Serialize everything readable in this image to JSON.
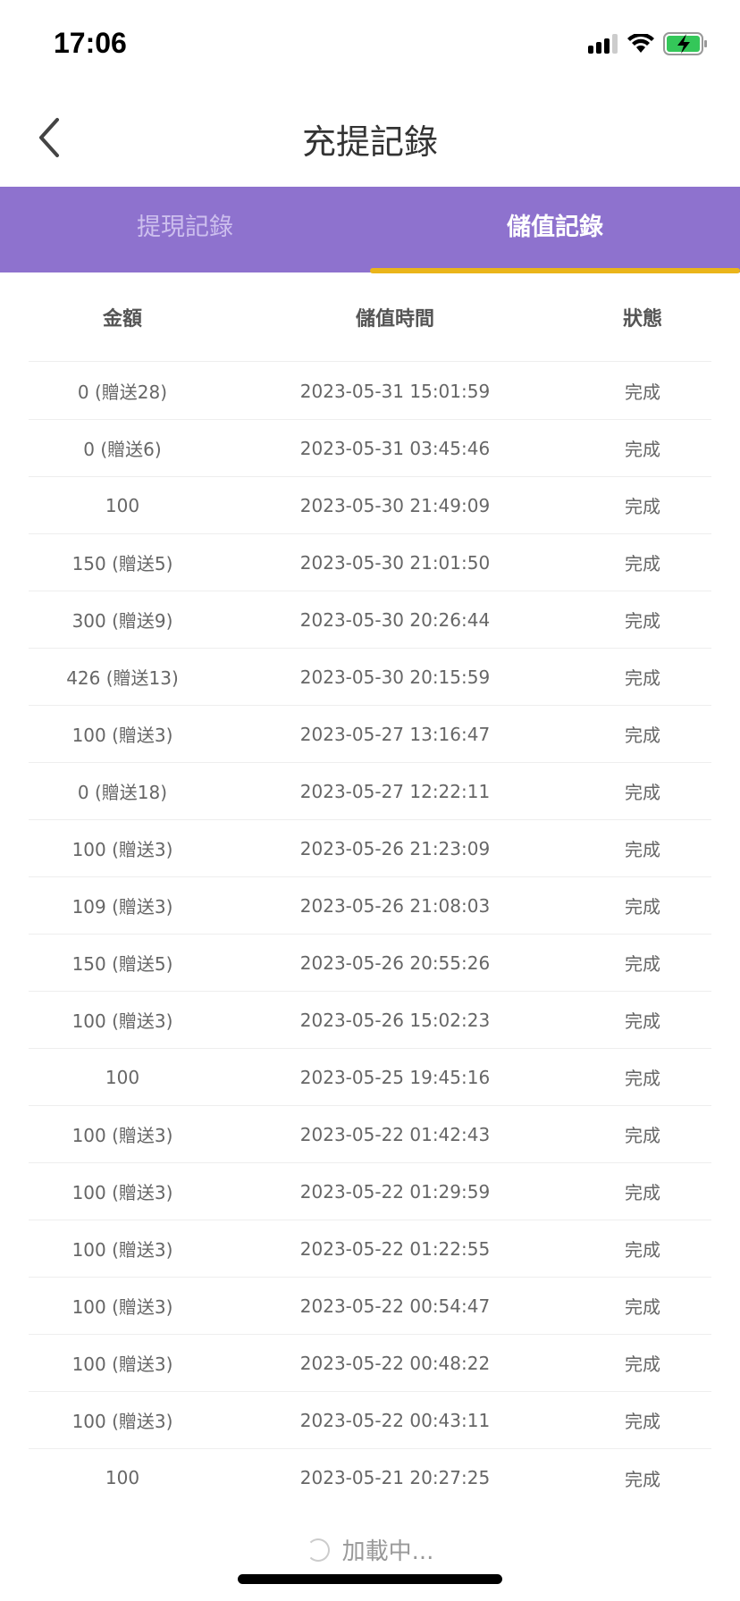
{
  "status_bar": {
    "time": "17:06",
    "icons": [
      "signal-icon",
      "wifi-icon",
      "battery-charging-icon"
    ]
  },
  "nav": {
    "title": "充提記錄",
    "back_icon": "chevron-left-icon"
  },
  "tabs": [
    {
      "label": "提現記錄",
      "active": false
    },
    {
      "label": "儲值記錄",
      "active": true
    }
  ],
  "colors": {
    "tab_bar": "#8E72CE",
    "tab_indicator": "#EAB51A"
  },
  "table": {
    "headers": [
      "金額",
      "儲值時間",
      "狀態"
    ],
    "rows": [
      [
        "0 (贈送28)",
        "2023-05-31 15:01:59",
        "完成"
      ],
      [
        "0 (贈送6)",
        "2023-05-31 03:45:46",
        "完成"
      ],
      [
        "100",
        "2023-05-30 21:49:09",
        "完成"
      ],
      [
        "150 (贈送5)",
        "2023-05-30 21:01:50",
        "完成"
      ],
      [
        "300 (贈送9)",
        "2023-05-30 20:26:44",
        "完成"
      ],
      [
        "426 (贈送13)",
        "2023-05-30 20:15:59",
        "完成"
      ],
      [
        "100 (贈送3)",
        "2023-05-27 13:16:47",
        "完成"
      ],
      [
        "0 (贈送18)",
        "2023-05-27 12:22:11",
        "完成"
      ],
      [
        "100 (贈送3)",
        "2023-05-26 21:23:09",
        "完成"
      ],
      [
        "109 (贈送3)",
        "2023-05-26 21:08:03",
        "完成"
      ],
      [
        "150 (贈送5)",
        "2023-05-26 20:55:26",
        "完成"
      ],
      [
        "100 (贈送3)",
        "2023-05-26 15:02:23",
        "完成"
      ],
      [
        "100",
        "2023-05-25 19:45:16",
        "完成"
      ],
      [
        "100 (贈送3)",
        "2023-05-22 01:42:43",
        "完成"
      ],
      [
        "100 (贈送3)",
        "2023-05-22 01:29:59",
        "完成"
      ],
      [
        "100 (贈送3)",
        "2023-05-22 01:22:55",
        "完成"
      ],
      [
        "100 (贈送3)",
        "2023-05-22 00:54:47",
        "完成"
      ],
      [
        "100 (贈送3)",
        "2023-05-22 00:48:22",
        "完成"
      ],
      [
        "100 (贈送3)",
        "2023-05-22 00:43:11",
        "完成"
      ],
      [
        "100",
        "2023-05-21 20:27:25",
        "完成"
      ]
    ]
  },
  "loading": {
    "text": "加載中..."
  }
}
